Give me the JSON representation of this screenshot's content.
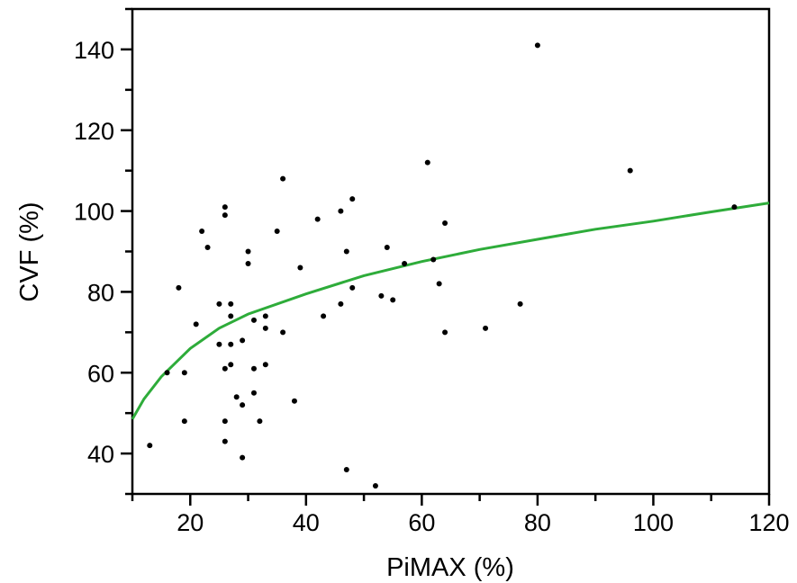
{
  "chart_data": {
    "type": "scatter",
    "title": "",
    "xlabel": "PiMAX (%)",
    "ylabel": "CVF (%)",
    "xlim": [
      10,
      120
    ],
    "ylim": [
      30,
      150
    ],
    "x_ticks": [
      20,
      40,
      60,
      80,
      100,
      120
    ],
    "y_ticks": [
      40,
      60,
      80,
      100,
      120,
      140
    ],
    "x_minor_step": 10,
    "y_minor_step": 10,
    "grid": false,
    "point_color": "#000000",
    "fit_color": "#2eac3a",
    "points": [
      [
        13,
        42
      ],
      [
        16,
        60
      ],
      [
        18,
        81
      ],
      [
        19,
        60
      ],
      [
        19,
        48
      ],
      [
        21,
        72
      ],
      [
        22,
        95
      ],
      [
        23,
        91
      ],
      [
        25,
        77
      ],
      [
        25,
        67
      ],
      [
        26,
        101
      ],
      [
        26,
        99
      ],
      [
        26,
        61
      ],
      [
        26,
        48
      ],
      [
        26,
        43
      ],
      [
        27,
        77
      ],
      [
        27,
        74
      ],
      [
        27,
        67
      ],
      [
        27,
        62
      ],
      [
        28,
        54
      ],
      [
        29,
        68
      ],
      [
        29,
        52
      ],
      [
        29,
        39
      ],
      [
        30,
        90
      ],
      [
        30,
        87
      ],
      [
        31,
        73
      ],
      [
        31,
        61
      ],
      [
        31,
        55
      ],
      [
        32,
        48
      ],
      [
        33,
        74
      ],
      [
        33,
        71
      ],
      [
        33,
        62
      ],
      [
        35,
        95
      ],
      [
        36,
        108
      ],
      [
        36,
        70
      ],
      [
        38,
        53
      ],
      [
        39,
        86
      ],
      [
        42,
        98
      ],
      [
        43,
        74
      ],
      [
        46,
        100
      ],
      [
        46,
        77
      ],
      [
        47,
        90
      ],
      [
        47,
        36
      ],
      [
        48,
        103
      ],
      [
        48,
        81
      ],
      [
        52,
        32
      ],
      [
        53,
        79
      ],
      [
        54,
        91
      ],
      [
        55,
        78
      ],
      [
        57,
        87
      ],
      [
        61,
        112
      ],
      [
        62,
        88
      ],
      [
        63,
        82
      ],
      [
        64,
        97
      ],
      [
        64,
        70
      ],
      [
        71,
        71
      ],
      [
        77,
        77
      ],
      [
        80,
        141
      ],
      [
        96,
        110
      ],
      [
        114,
        101
      ]
    ],
    "fit": {
      "type": "curve",
      "points": [
        [
          10,
          48.5
        ],
        [
          12,
          53.5
        ],
        [
          15,
          59
        ],
        [
          20,
          66
        ],
        [
          25,
          71
        ],
        [
          30,
          74.5
        ],
        [
          40,
          79.5
        ],
        [
          50,
          84
        ],
        [
          60,
          87.5
        ],
        [
          70,
          90.5
        ],
        [
          80,
          93
        ],
        [
          90,
          95.5
        ],
        [
          100,
          97.5
        ],
        [
          110,
          99.8
        ],
        [
          120,
          102
        ]
      ]
    }
  }
}
